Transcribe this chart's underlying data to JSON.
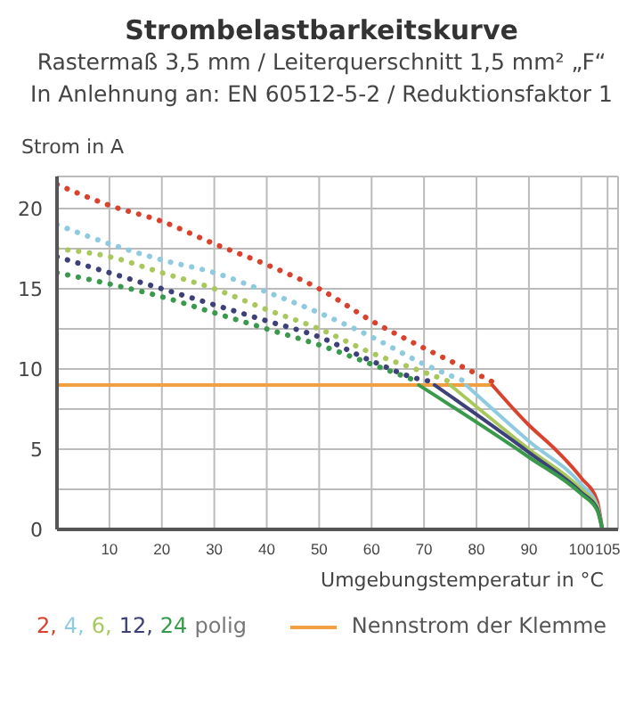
{
  "chart_data": {
    "type": "line",
    "title": "Strombelastbarkeitskurve",
    "subtitle": "Rastermaß 3,5 mm / Leiterquerschnitt 1,5 mm² „F“\nIn Anlehnung an: EN 60512-5-2 / Reduktionsfaktor 1",
    "ylabel": "Strom in A",
    "xlabel": "Umgebungstemperatur in °C",
    "legend_title": "polig",
    "xlim": [
      0,
      107
    ],
    "xticks": [
      10,
      20,
      30,
      40,
      50,
      60,
      70,
      80,
      90,
      100,
      105
    ],
    "ylim": [
      0,
      22
    ],
    "yticks": [
      0,
      {
        "value": 2.5,
        "label": null
      },
      5,
      {
        "value": 7.5,
        "label": null
      },
      10,
      {
        "value": 12.5,
        "label": null
      },
      15,
      {
        "value": 17.5,
        "label": null
      },
      20
    ],
    "grid": true,
    "legend": "bottom",
    "marker": "none",
    "series": [
      {
        "color": "#d9432e",
        "line_style": "dotted",
        "x": [
          0,
          10,
          20,
          30,
          40,
          50,
          60,
          70,
          80,
          83
        ],
        "values": [
          21.5,
          20.2,
          19.2,
          17.8,
          16.5,
          15,
          13,
          11.3,
          9.7,
          9.2
        ]
      },
      {
        "color": "#8ecbe0",
        "line_style": "dotted",
        "x": [
          0,
          10,
          20,
          30,
          40,
          50,
          60,
          70,
          78
        ],
        "values": [
          19,
          17.8,
          16.8,
          16,
          14.8,
          13.5,
          12,
          10.3,
          9.2
        ]
      },
      {
        "color": "#a8c85c",
        "line_style": "dotted",
        "x": [
          0,
          10,
          20,
          30,
          40,
          50,
          60,
          70,
          75
        ],
        "values": [
          17.5,
          17,
          16,
          15,
          13.7,
          12.5,
          11,
          9.8,
          9.2
        ]
      },
      {
        "color": "#3d4079",
        "line_style": "dotted",
        "x": [
          0,
          10,
          20,
          30,
          40,
          50,
          60,
          70,
          72
        ],
        "values": [
          17,
          16,
          15,
          14,
          13,
          12,
          10.5,
          9.3,
          9.2
        ]
      },
      {
        "color": "#3a9a4c",
        "line_style": "dotted",
        "x": [
          0,
          10,
          20,
          30,
          40,
          50,
          60,
          69
        ],
        "values": [
          16,
          15.3,
          14.5,
          13.5,
          12.5,
          11.5,
          10.3,
          9.2
        ]
      },
      {
        "name": "Nennstrom der Klemme",
        "color": "#f0a040",
        "line_style": "solid",
        "x": [
          0,
          83
        ],
        "values": [
          9,
          9
        ]
      },
      {
        "name": "2,",
        "color": "#d9432e",
        "line_style": "solid",
        "x": [
          83,
          90,
          95,
          100,
          103,
          104
        ],
        "values": [
          9,
          6.5,
          5,
          3.2,
          1.8,
          0
        ]
      },
      {
        "name": "4,",
        "color": "#8ecbe0",
        "line_style": "solid",
        "x": [
          78,
          90,
          100,
          103,
          104
        ],
        "values": [
          9,
          5.5,
          2.8,
          1.5,
          0
        ]
      },
      {
        "name": "6,",
        "color": "#a8c85c",
        "line_style": "solid",
        "x": [
          75,
          90,
          100,
          103,
          104
        ],
        "values": [
          9,
          5,
          2.5,
          1.4,
          0
        ]
      },
      {
        "name": "12,",
        "color": "#3d4079",
        "line_style": "solid",
        "x": [
          72,
          90,
          100,
          103,
          104
        ],
        "values": [
          9,
          4.8,
          2.3,
          1.3,
          0
        ]
      },
      {
        "name": "24",
        "color": "#3a9a4c",
        "line_style": "solid",
        "x": [
          69,
          90,
          100,
          103,
          104
        ],
        "values": [
          9,
          4.5,
          2.2,
          1.2,
          0
        ]
      }
    ]
  }
}
